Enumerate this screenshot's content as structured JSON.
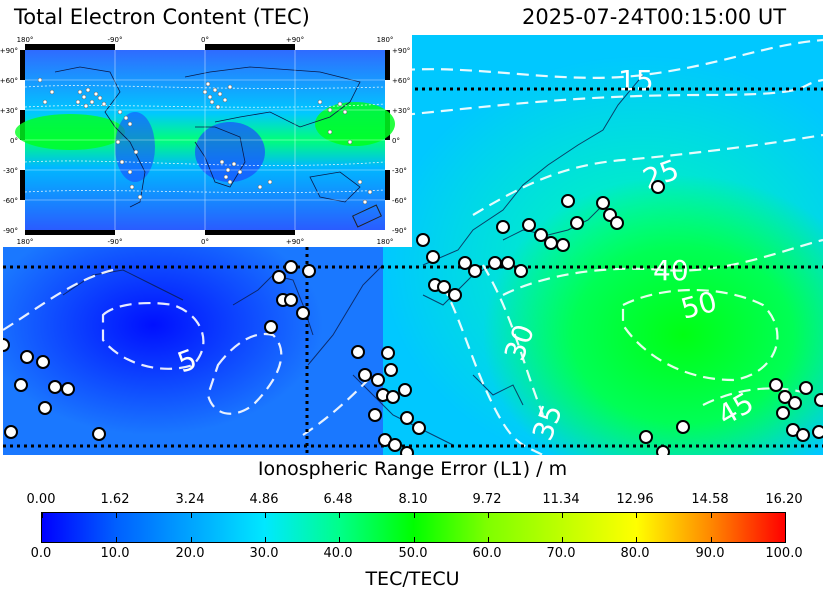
{
  "header": {
    "title": "Total Electron Content (TEC)",
    "timestamp": "2025-07-24T00:15:00 UT"
  },
  "inset": {
    "top_lon_labels": [
      "180°",
      "-90°",
      "0°",
      "+90°",
      "180°"
    ],
    "bottom_lon_labels": [
      "180°",
      "-90°",
      "0°",
      "+90°",
      "180°"
    ],
    "lat_labels": [
      "+90°",
      "+60°",
      "+30°",
      "0°",
      "-30°",
      "-60°",
      "-90°"
    ]
  },
  "contours": [
    "15",
    "25",
    "40",
    "50",
    "45",
    "30",
    "35",
    "5"
  ],
  "colorbar": {
    "top_label": "Ionospheric Range Error (L1) / m",
    "top_ticks": [
      "0.00",
      "1.62",
      "3.24",
      "4.86",
      "6.48",
      "8.10",
      "9.72",
      "11.34",
      "12.96",
      "14.58",
      "16.20"
    ],
    "bottom_ticks": [
      "0.0",
      "10.0",
      "20.0",
      "30.0",
      "40.0",
      "50.0",
      "60.0",
      "70.0",
      "80.0",
      "90.0",
      "100.0"
    ],
    "bottom_label": "TEC/TECU",
    "colors": [
      "#0000ff",
      "#00e8ff",
      "#00ff00",
      "#ffff00",
      "#ff0000"
    ]
  }
}
